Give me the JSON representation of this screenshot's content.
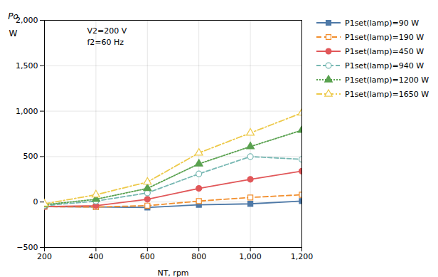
{
  "chart_data": {
    "type": "line",
    "xlabel": "NT, rpm",
    "ylabel": [
      "Po",
      "W"
    ],
    "annotations": [
      "V2=200 V",
      "f2=60 Hz"
    ],
    "x": [
      200,
      400,
      600,
      800,
      1000,
      1200
    ],
    "xlim": [
      200,
      1200
    ],
    "ylim": [
      -500,
      2000
    ],
    "xticks": [
      200,
      400,
      600,
      800,
      1000,
      1200
    ],
    "yticks": [
      -500,
      0,
      500,
      1000,
      1500,
      2000
    ],
    "grid": true,
    "legend": "right",
    "series": [
      {
        "name": "P1set(lamp)=90 W",
        "values": [
          -50,
          -55,
          -60,
          -30,
          -20,
          10
        ],
        "marker": "filled-square",
        "line_style": "solid"
      },
      {
        "name": "P1set(lamp)=190 W",
        "values": [
          -50,
          -55,
          -40,
          10,
          50,
          80
        ],
        "marker": "open-square",
        "line_style": "long-dash"
      },
      {
        "name": "P1set(lamp)=450 W",
        "values": [
          -50,
          -40,
          30,
          150,
          250,
          340
        ],
        "marker": "filled-circle",
        "line_style": "solid"
      },
      {
        "name": "P1set(lamp)=940 W",
        "values": [
          -40,
          10,
          100,
          310,
          500,
          470
        ],
        "marker": "open-circle",
        "line_style": "dashed"
      },
      {
        "name": "P1set(lamp)=1200 W",
        "values": [
          -30,
          30,
          150,
          420,
          610,
          790
        ],
        "marker": "filled-triangle",
        "line_style": "dotted"
      },
      {
        "name": "P1set(lamp)=1650 W",
        "values": [
          -20,
          80,
          220,
          540,
          760,
          980
        ],
        "marker": "open-triangle",
        "line_style": "dash-dot"
      }
    ]
  }
}
